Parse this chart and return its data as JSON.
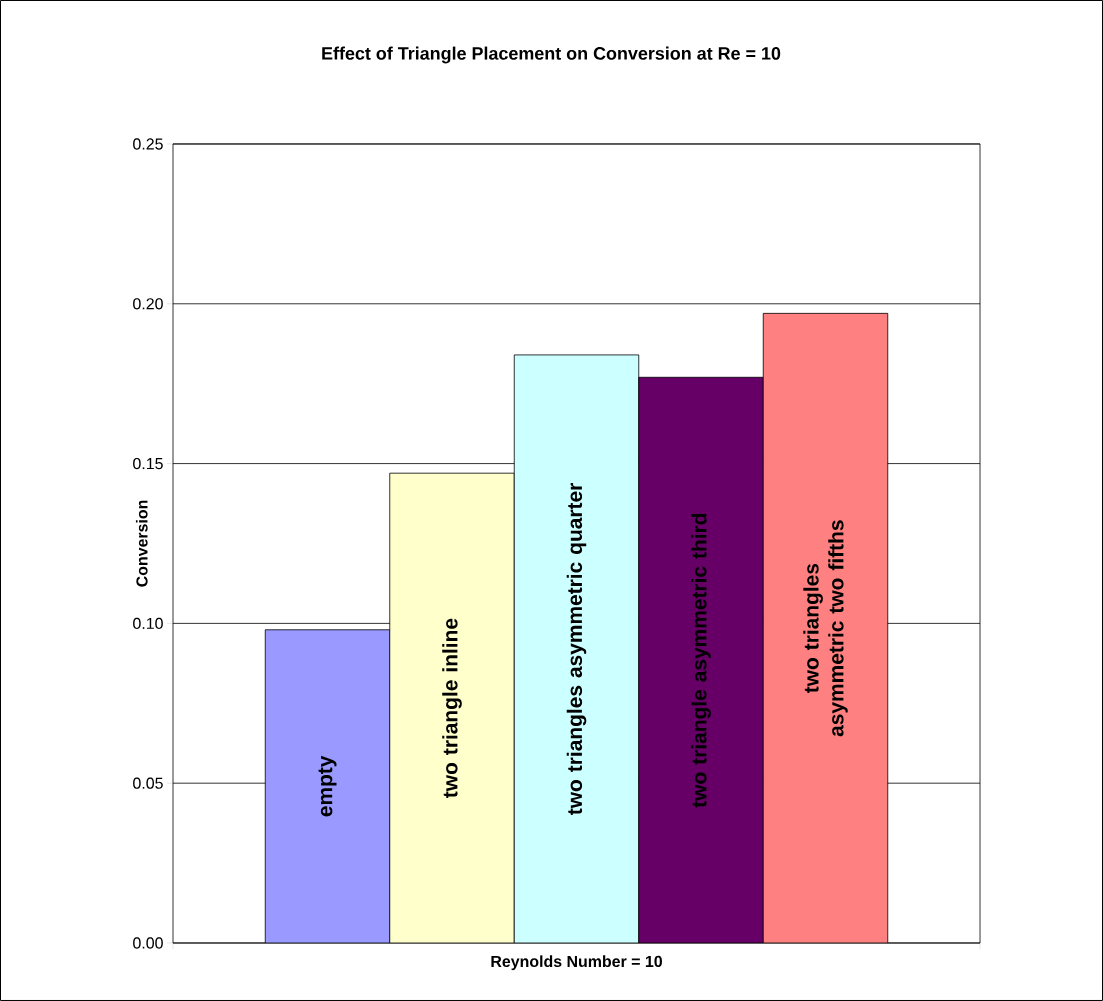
{
  "chart_data": {
    "type": "bar",
    "title": "Effect of Triangle Placement on Conversion at Re = 10",
    "xlabel": "Reynolds Number = 10",
    "ylabel": "Conversion",
    "categories": [
      null
    ],
    "series": [
      {
        "name": "empty",
        "color": "#9999ff",
        "values": [
          0.098
        ]
      },
      {
        "name": "two triangle inline",
        "color": "#ffffcc",
        "values": [
          0.147
        ]
      },
      {
        "name": "two triangles asymmetric quarter",
        "color": "#ccffff",
        "values": [
          0.184
        ]
      },
      {
        "name": "two triangle asymmetric third",
        "color": "#660066",
        "values": [
          0.177
        ]
      },
      {
        "name": "two triangles asymmetric two fifths",
        "color": "#ff8080",
        "values": [
          0.197
        ]
      }
    ],
    "ylim": [
      0,
      0.25
    ],
    "yticks": [
      {
        "value": 0,
        "label": "0.00"
      },
      {
        "value": 0.05,
        "label": "0.05"
      },
      {
        "value": 0.1,
        "label": "0.10"
      },
      {
        "value": 0.15,
        "label": "0.15"
      },
      {
        "value": 0.2,
        "label": "0.20"
      },
      {
        "value": 0.25,
        "label": "0.25"
      }
    ],
    "grid": "y"
  }
}
